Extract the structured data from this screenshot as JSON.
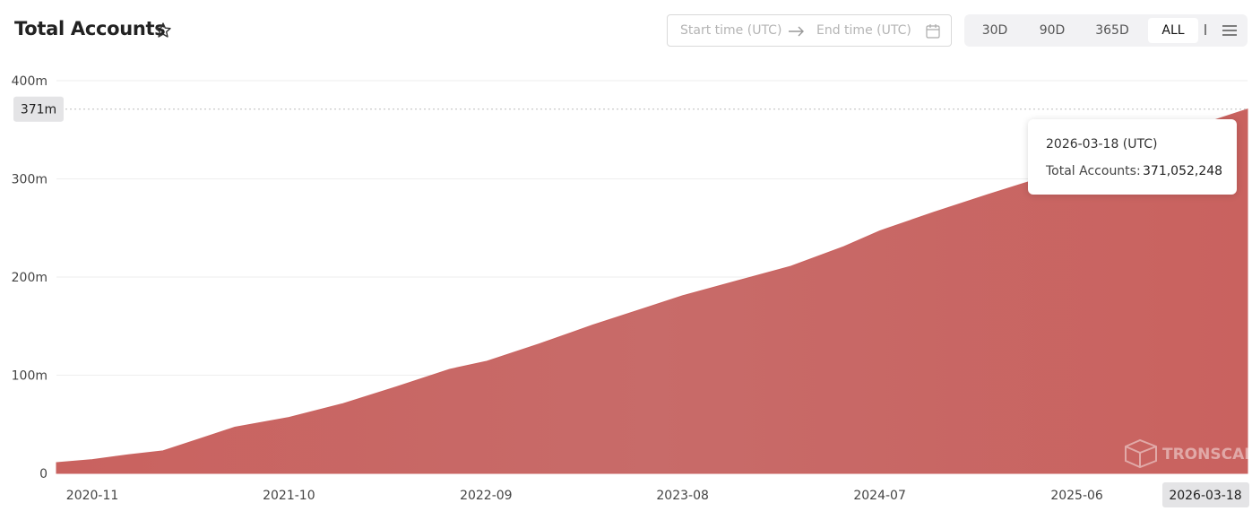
{
  "header": {
    "title": "Total Accounts",
    "start_placeholder": "Start time (UTC)",
    "end_placeholder": "End time (UTC)",
    "ranges": [
      "30D",
      "90D",
      "365D",
      "ALL"
    ],
    "active_range": 3
  },
  "chart_data": {
    "type": "area",
    "x": [
      "2020-09",
      "2020-11",
      "2021-01",
      "2021-03",
      "2021-05",
      "2021-07",
      "2021-10",
      "2022-01",
      "2022-04",
      "2022-07",
      "2022-09",
      "2022-12",
      "2023-03",
      "2023-06",
      "2023-08",
      "2023-11",
      "2024-02",
      "2024-05",
      "2024-07",
      "2024-10",
      "2025-01",
      "2025-04",
      "2025-06",
      "2025-09",
      "2025-12",
      "2026-03-18"
    ],
    "series": [
      {
        "name": "Total Accounts",
        "color": "#c9625f",
        "values": [
          11000000,
          14000000,
          19000000,
          23000000,
          35000000,
          47000000,
          57000000,
          71000000,
          88000000,
          106000000,
          114000000,
          132000000,
          151000000,
          169000000,
          181000000,
          196000000,
          211000000,
          231000000,
          247000000,
          266000000,
          284000000,
          301000000,
          311000000,
          330000000,
          350000000,
          371052248
        ]
      }
    ],
    "xlim": [
      "2020-09",
      "2026-03-18"
    ],
    "xticks": [
      "2020-11",
      "2021-10",
      "2022-09",
      "2023-08",
      "2024-07",
      "2025-06"
    ],
    "ylim": [
      0,
      400000000
    ],
    "yticks": [
      0,
      {
        "value": 100000000,
        "label": "100m"
      },
      {
        "value": 200000000,
        "label": "200m"
      },
      {
        "value": 300000000,
        "label": "300m"
      },
      {
        "value": 400000000,
        "label": "400m"
      }
    ],
    "grid": true,
    "crosshair": {
      "value": 371052248,
      "label": "371m"
    },
    "tooltip": {
      "title": "2026-03-18 (UTC)",
      "label": "Total Accounts:",
      "value": 371052248,
      "value_label": "371,052,248"
    },
    "watermark": "TRONSCAN"
  }
}
